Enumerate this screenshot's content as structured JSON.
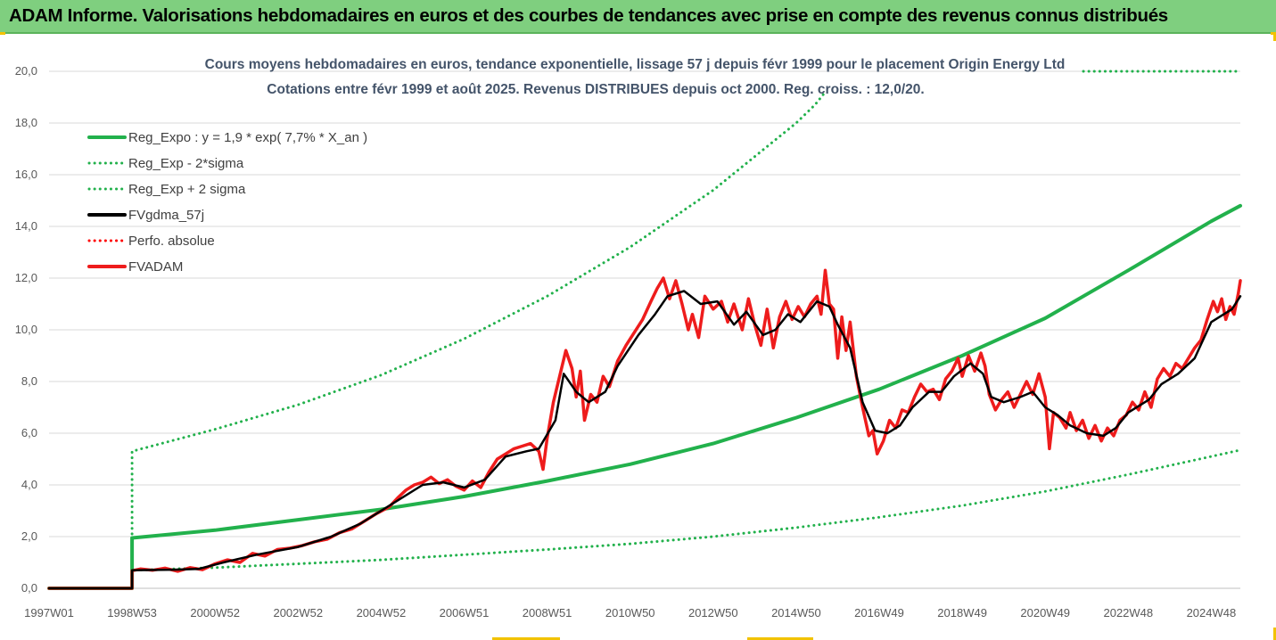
{
  "banner": {
    "title": "ADAM Informe. Valorisations hebdomadaires en euros et des courbes de tendances avec prise en compte des revenus connus distribués"
  },
  "chart_data": {
    "type": "line",
    "title": "Cours moyens hebdomadaires en euros, tendance exponentielle, lissage 57 j depuis févr 1999 pour le placement Origin Energy Ltd",
    "subtitle": "Cotations entre févr 1999 et août 2025. Revenus DISTRIBUES depuis oct 2000. Reg. croiss. : 12,0/20.",
    "xlabel": "",
    "ylabel": "",
    "ylim": [
      0,
      20
    ],
    "yticks": [
      "0,0",
      "2,0",
      "4,0",
      "6,0",
      "8,0",
      "10,0",
      "12,0",
      "14,0",
      "16,0",
      "18,0",
      "20,0"
    ],
    "xlim": [
      1997.0,
      2025.7
    ],
    "x_tick_labels": [
      {
        "label": "1997W01",
        "x": 1997.0
      },
      {
        "label": "1998W53",
        "x": 1999.0
      },
      {
        "label": "2000W52",
        "x": 2001.0
      },
      {
        "label": "2002W52",
        "x": 2003.0
      },
      {
        "label": "2004W52",
        "x": 2005.0
      },
      {
        "label": "2006W51",
        "x": 2007.0
      },
      {
        "label": "2008W51",
        "x": 2009.0
      },
      {
        "label": "2010W50",
        "x": 2011.0
      },
      {
        "label": "2012W50",
        "x": 2013.0
      },
      {
        "label": "2014W50",
        "x": 2015.0
      },
      {
        "label": "2016W49",
        "x": 2017.0
      },
      {
        "label": "2018W49",
        "x": 2019.0
      },
      {
        "label": "2020W49",
        "x": 2021.0
      },
      {
        "label": "2022W48",
        "x": 2023.0
      },
      {
        "label": "2024W48",
        "x": 2025.0
      }
    ],
    "grid": "horizontal",
    "legend_position": "top-left",
    "series": [
      {
        "name": "Reg_Expo : y = 1,9 * exp( 7,7% *  X_an )",
        "color": "#22b14c",
        "style": "solid",
        "points": [
          [
            1997.0,
            0
          ],
          [
            1999.0,
            0
          ],
          [
            1999.0,
            1.95
          ],
          [
            2001,
            2.25
          ],
          [
            2003,
            2.65
          ],
          [
            2005,
            3.05
          ],
          [
            2007,
            3.55
          ],
          [
            2009,
            4.15
          ],
          [
            2011,
            4.8
          ],
          [
            2013,
            5.6
          ],
          [
            2015,
            6.6
          ],
          [
            2017,
            7.7
          ],
          [
            2019,
            9.0
          ],
          [
            2021,
            10.45
          ],
          [
            2023,
            12.3
          ],
          [
            2025,
            14.2
          ],
          [
            2025.7,
            14.8
          ]
        ]
      },
      {
        "name": "Reg_Exp - 2*sigma",
        "color": "#22b14c",
        "style": "dotted",
        "points": [
          [
            1999.0,
            0
          ],
          [
            1999.0,
            0.7
          ],
          [
            2001,
            0.8
          ],
          [
            2003,
            0.95
          ],
          [
            2005,
            1.1
          ],
          [
            2007,
            1.3
          ],
          [
            2009,
            1.5
          ],
          [
            2011,
            1.72
          ],
          [
            2013,
            2.0
          ],
          [
            2015,
            2.35
          ],
          [
            2017,
            2.75
          ],
          [
            2019,
            3.2
          ],
          [
            2021,
            3.75
          ],
          [
            2023,
            4.4
          ],
          [
            2025,
            5.1
          ],
          [
            2025.7,
            5.35
          ]
        ]
      },
      {
        "name": "Reg_Exp + 2 sigma",
        "color": "#22b14c",
        "style": "dotted",
        "points": [
          [
            1999.0,
            0
          ],
          [
            1999.0,
            5.3
          ],
          [
            2001,
            6.15
          ],
          [
            2003,
            7.1
          ],
          [
            2005,
            8.25
          ],
          [
            2007,
            9.65
          ],
          [
            2009,
            11.3
          ],
          [
            2011,
            13.2
          ],
          [
            2013,
            15.4
          ],
          [
            2015,
            18.0
          ],
          [
            2015.45,
            18.7
          ],
          [
            2015.7,
            19.2
          ]
        ]
      },
      {
        "name": "FVgdma_57j",
        "color": "#000000",
        "style": "solid",
        "points": [
          [
            1997.0,
            0
          ],
          [
            1999.0,
            0
          ],
          [
            1999.0,
            0.7
          ],
          [
            2000.0,
            0.72
          ],
          [
            2000.6,
            0.75
          ],
          [
            2001.2,
            1.0
          ],
          [
            2002.0,
            1.3
          ],
          [
            2003.0,
            1.6
          ],
          [
            2003.8,
            2.0
          ],
          [
            2004.5,
            2.5
          ],
          [
            2005.3,
            3.3
          ],
          [
            2006.0,
            4.0
          ],
          [
            2006.5,
            4.1
          ],
          [
            2007.0,
            3.9
          ],
          [
            2007.5,
            4.2
          ],
          [
            2008.0,
            5.1
          ],
          [
            2008.5,
            5.3
          ],
          [
            2008.8,
            5.4
          ],
          [
            2009.2,
            6.5
          ],
          [
            2009.4,
            8.3
          ],
          [
            2009.7,
            7.6
          ],
          [
            2010.0,
            7.2
          ],
          [
            2010.4,
            7.6
          ],
          [
            2010.7,
            8.6
          ],
          [
            2011.2,
            9.8
          ],
          [
            2011.6,
            10.6
          ],
          [
            2011.9,
            11.3
          ],
          [
            2012.3,
            11.5
          ],
          [
            2012.7,
            11.0
          ],
          [
            2013.1,
            11.1
          ],
          [
            2013.5,
            10.2
          ],
          [
            2013.8,
            10.7
          ],
          [
            2014.2,
            9.8
          ],
          [
            2014.5,
            10.0
          ],
          [
            2014.8,
            10.6
          ],
          [
            2015.1,
            10.3
          ],
          [
            2015.5,
            11.1
          ],
          [
            2015.8,
            10.9
          ],
          [
            2016.0,
            10.2
          ],
          [
            2016.3,
            9.3
          ],
          [
            2016.6,
            7.2
          ],
          [
            2016.9,
            6.1
          ],
          [
            2017.2,
            6.0
          ],
          [
            2017.5,
            6.3
          ],
          [
            2017.8,
            7.0
          ],
          [
            2018.2,
            7.6
          ],
          [
            2018.5,
            7.6
          ],
          [
            2018.8,
            8.2
          ],
          [
            2019.2,
            8.7
          ],
          [
            2019.5,
            8.3
          ],
          [
            2019.7,
            7.4
          ],
          [
            2020.0,
            7.2
          ],
          [
            2020.4,
            7.4
          ],
          [
            2020.7,
            7.6
          ],
          [
            2021.0,
            7.0
          ],
          [
            2021.3,
            6.7
          ],
          [
            2021.6,
            6.3
          ],
          [
            2022.0,
            6.0
          ],
          [
            2022.4,
            5.9
          ],
          [
            2022.7,
            6.2
          ],
          [
            2023.0,
            6.8
          ],
          [
            2023.5,
            7.3
          ],
          [
            2023.8,
            7.9
          ],
          [
            2024.2,
            8.3
          ],
          [
            2024.6,
            8.9
          ],
          [
            2025.0,
            10.3
          ],
          [
            2025.3,
            10.6
          ],
          [
            2025.5,
            10.8
          ],
          [
            2025.7,
            11.3
          ]
        ]
      },
      {
        "name": "Perfo. absolue",
        "color": "#ff0000",
        "style": "dotted",
        "points": []
      },
      {
        "name": "FVADAM",
        "color": "#ee1c1c",
        "style": "solid",
        "points": [
          [
            1997.0,
            0
          ],
          [
            1999.0,
            0
          ],
          [
            1999.0,
            0.68
          ],
          [
            1999.2,
            0.75
          ],
          [
            1999.5,
            0.7
          ],
          [
            1999.8,
            0.78
          ],
          [
            2000.1,
            0.66
          ],
          [
            2000.4,
            0.8
          ],
          [
            2000.7,
            0.72
          ],
          [
            2001.0,
            0.95
          ],
          [
            2001.3,
            1.1
          ],
          [
            2001.6,
            1.0
          ],
          [
            2001.9,
            1.35
          ],
          [
            2002.2,
            1.25
          ],
          [
            2002.5,
            1.5
          ],
          [
            2002.8,
            1.55
          ],
          [
            2003.1,
            1.65
          ],
          [
            2003.4,
            1.8
          ],
          [
            2003.7,
            1.9
          ],
          [
            2004.0,
            2.15
          ],
          [
            2004.3,
            2.3
          ],
          [
            2004.6,
            2.6
          ],
          [
            2004.9,
            2.9
          ],
          [
            2005.2,
            3.15
          ],
          [
            2005.4,
            3.5
          ],
          [
            2005.6,
            3.8
          ],
          [
            2005.8,
            4.0
          ],
          [
            2006.0,
            4.1
          ],
          [
            2006.2,
            4.3
          ],
          [
            2006.4,
            4.05
          ],
          [
            2006.6,
            4.2
          ],
          [
            2006.8,
            3.95
          ],
          [
            2007.0,
            3.8
          ],
          [
            2007.2,
            4.15
          ],
          [
            2007.4,
            3.9
          ],
          [
            2007.6,
            4.5
          ],
          [
            2007.8,
            5.0
          ],
          [
            2008.0,
            5.2
          ],
          [
            2008.2,
            5.4
          ],
          [
            2008.4,
            5.5
          ],
          [
            2008.6,
            5.6
          ],
          [
            2008.8,
            5.3
          ],
          [
            2008.9,
            4.6
          ],
          [
            2009.0,
            5.8
          ],
          [
            2009.15,
            7.2
          ],
          [
            2009.3,
            8.2
          ],
          [
            2009.45,
            9.2
          ],
          [
            2009.6,
            8.5
          ],
          [
            2009.7,
            7.4
          ],
          [
            2009.8,
            8.4
          ],
          [
            2009.9,
            6.5
          ],
          [
            2010.05,
            7.5
          ],
          [
            2010.2,
            7.2
          ],
          [
            2010.35,
            8.2
          ],
          [
            2010.5,
            7.8
          ],
          [
            2010.7,
            8.8
          ],
          [
            2010.9,
            9.4
          ],
          [
            2011.1,
            9.9
          ],
          [
            2011.3,
            10.4
          ],
          [
            2011.5,
            11.1
          ],
          [
            2011.65,
            11.6
          ],
          [
            2011.8,
            12.0
          ],
          [
            2011.95,
            11.2
          ],
          [
            2012.1,
            11.9
          ],
          [
            2012.25,
            11.0
          ],
          [
            2012.4,
            10.0
          ],
          [
            2012.5,
            10.6
          ],
          [
            2012.65,
            9.7
          ],
          [
            2012.8,
            11.3
          ],
          [
            2013.0,
            10.8
          ],
          [
            2013.2,
            11.1
          ],
          [
            2013.35,
            10.3
          ],
          [
            2013.5,
            11.0
          ],
          [
            2013.7,
            10.0
          ],
          [
            2013.85,
            11.2
          ],
          [
            2014.0,
            10.2
          ],
          [
            2014.15,
            9.4
          ],
          [
            2014.3,
            10.8
          ],
          [
            2014.45,
            9.3
          ],
          [
            2014.6,
            10.5
          ],
          [
            2014.75,
            11.1
          ],
          [
            2014.9,
            10.4
          ],
          [
            2015.05,
            10.9
          ],
          [
            2015.2,
            10.5
          ],
          [
            2015.35,
            11.0
          ],
          [
            2015.5,
            11.3
          ],
          [
            2015.6,
            10.6
          ],
          [
            2015.7,
            12.3
          ],
          [
            2015.8,
            11.0
          ],
          [
            2015.9,
            10.8
          ],
          [
            2016.0,
            8.9
          ],
          [
            2016.1,
            10.5
          ],
          [
            2016.2,
            9.2
          ],
          [
            2016.3,
            10.3
          ],
          [
            2016.45,
            8.2
          ],
          [
            2016.6,
            7.0
          ],
          [
            2016.75,
            5.9
          ],
          [
            2016.85,
            6.1
          ],
          [
            2016.95,
            5.2
          ],
          [
            2017.1,
            5.7
          ],
          [
            2017.25,
            6.5
          ],
          [
            2017.4,
            6.2
          ],
          [
            2017.55,
            6.9
          ],
          [
            2017.7,
            6.8
          ],
          [
            2017.85,
            7.4
          ],
          [
            2018.0,
            7.9
          ],
          [
            2018.15,
            7.6
          ],
          [
            2018.3,
            7.7
          ],
          [
            2018.45,
            7.3
          ],
          [
            2018.6,
            8.1
          ],
          [
            2018.75,
            8.4
          ],
          [
            2018.9,
            8.9
          ],
          [
            2019.0,
            8.2
          ],
          [
            2019.15,
            9.0
          ],
          [
            2019.3,
            8.4
          ],
          [
            2019.45,
            9.1
          ],
          [
            2019.55,
            8.6
          ],
          [
            2019.65,
            7.5
          ],
          [
            2019.8,
            6.9
          ],
          [
            2019.95,
            7.3
          ],
          [
            2020.1,
            7.6
          ],
          [
            2020.25,
            7.0
          ],
          [
            2020.4,
            7.5
          ],
          [
            2020.55,
            8.0
          ],
          [
            2020.7,
            7.5
          ],
          [
            2020.85,
            8.3
          ],
          [
            2021.0,
            7.4
          ],
          [
            2021.1,
            5.4
          ],
          [
            2021.2,
            6.8
          ],
          [
            2021.35,
            6.6
          ],
          [
            2021.5,
            6.2
          ],
          [
            2021.6,
            6.8
          ],
          [
            2021.75,
            6.1
          ],
          [
            2021.9,
            6.5
          ],
          [
            2022.05,
            5.8
          ],
          [
            2022.2,
            6.3
          ],
          [
            2022.35,
            5.7
          ],
          [
            2022.5,
            6.2
          ],
          [
            2022.65,
            5.9
          ],
          [
            2022.8,
            6.5
          ],
          [
            2022.95,
            6.7
          ],
          [
            2023.1,
            7.2
          ],
          [
            2023.25,
            6.9
          ],
          [
            2023.4,
            7.6
          ],
          [
            2023.55,
            7.0
          ],
          [
            2023.7,
            8.1
          ],
          [
            2023.85,
            8.5
          ],
          [
            2024.0,
            8.2
          ],
          [
            2024.15,
            8.7
          ],
          [
            2024.3,
            8.5
          ],
          [
            2024.45,
            8.9
          ],
          [
            2024.6,
            9.3
          ],
          [
            2024.75,
            9.6
          ],
          [
            2024.9,
            10.4
          ],
          [
            2025.05,
            11.1
          ],
          [
            2025.15,
            10.7
          ],
          [
            2025.25,
            11.2
          ],
          [
            2025.35,
            10.4
          ],
          [
            2025.45,
            10.9
          ],
          [
            2025.55,
            10.6
          ],
          [
            2025.65,
            11.4
          ],
          [
            2025.7,
            11.9
          ]
        ]
      }
    ],
    "top_right_dotted_value": 20.0
  }
}
